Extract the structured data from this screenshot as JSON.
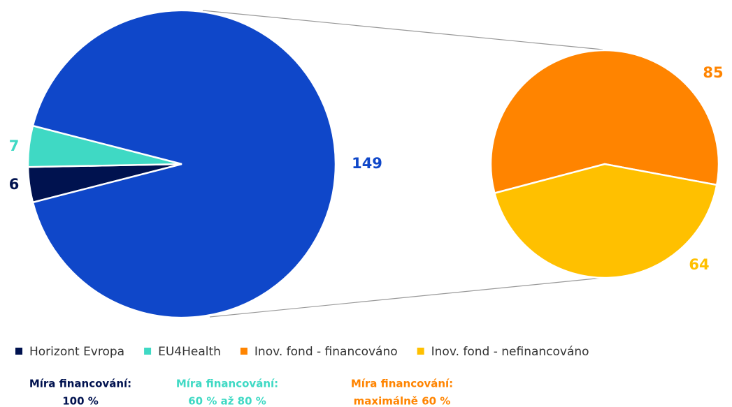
{
  "chart_data": {
    "type": "pie-of-pie",
    "pies": [
      {
        "categories": [
          "Horizont Evropa",
          "EU4Health",
          null
        ],
        "values": [
          6,
          7,
          149
        ],
        "colors": [
          "#00124f",
          "#3fd9c4",
          "#0f47c9"
        ]
      },
      {
        "categories": [
          "Inov. fond - financováno",
          "Inov. fond - nefinancováno"
        ],
        "values": [
          85,
          64
        ],
        "colors": [
          "#ff8400",
          "#ffc000"
        ]
      }
    ],
    "notes": [
      {
        "lines": [
          "Míra financování:",
          "100 %"
        ],
        "color": "#00124f"
      },
      {
        "lines": [
          "Míra financování:",
          "60 % až 80 %"
        ],
        "color": "#3fd9c4"
      },
      {
        "lines": [
          "Míra financování:",
          "maximálně 60 %"
        ],
        "color": "#ff8400"
      }
    ]
  }
}
